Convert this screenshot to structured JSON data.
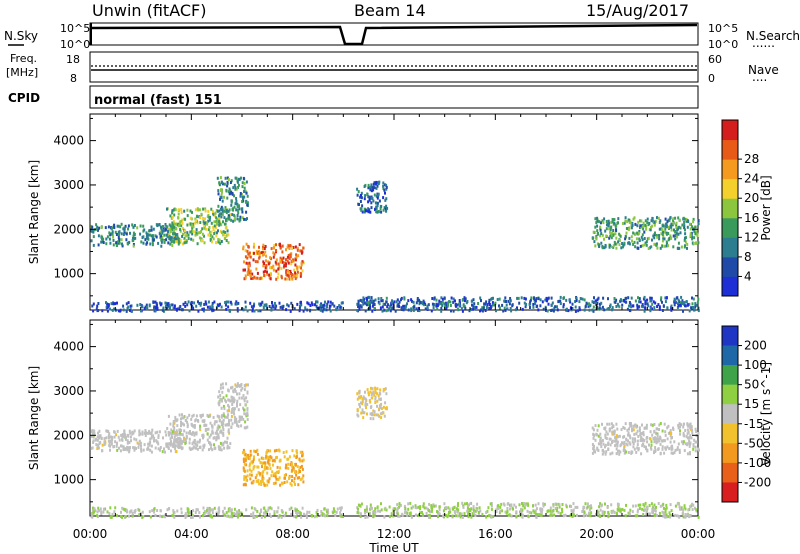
{
  "header": {
    "station": "Unwin (fitACF)",
    "beam": "Beam 14",
    "date": "15/Aug/2017"
  },
  "panels": {
    "nsky_label": "N.Sky",
    "nsearch_label": "N.Search",
    "freq_label": "Freq.",
    "freq_unit": "[MHz]",
    "nave_label": "Nave",
    "cpid_label": "CPID",
    "cpid_value": "normal (fast) 151",
    "noise_ticks": [
      "10^5",
      "10^0"
    ],
    "freq_ticks": [
      "18",
      "8"
    ],
    "nave_ticks": [
      "60",
      "0"
    ],
    "nsearch_legend": "......",
    "nave_legend": "...."
  },
  "colors": {
    "power_scale": [
      "#1f2fd6",
      "#1f4aa8",
      "#2b7d8f",
      "#3a9a5c",
      "#8cc63f",
      "#f3d02c",
      "#f39a1f",
      "#e85a18",
      "#d41d1d"
    ],
    "velocity_scale": [
      "#1f35c4",
      "#1f68a8",
      "#3fa34a",
      "#8fd043",
      "#c0c0c0",
      "#f2c12e",
      "#f29a1f",
      "#e8601a",
      "#d81e1e"
    ]
  },
  "chart_data": [
    {
      "type": "heatmap",
      "title": "",
      "quantity": "Power",
      "xlabel": "Time UT",
      "ylabel": "Slant Range [km]",
      "colorbar_label": "Power [dB]",
      "x_range": [
        "00:00",
        "24:00"
      ],
      "x_ticks": [
        "00:00",
        "04:00",
        "08:00",
        "12:00",
        "16:00",
        "20:00",
        "00:00"
      ],
      "y_range": [
        180,
        4600
      ],
      "y_ticks": [
        1000,
        2000,
        3000,
        4000
      ],
      "color_ticks": [
        4,
        8,
        12,
        16,
        20,
        24,
        28
      ],
      "color_range": [
        0,
        30
      ],
      "regions": [
        {
          "t_start": 0.0,
          "t_end": 3.5,
          "range_start": 1650,
          "range_end": 2150,
          "power": 9
        },
        {
          "t_start": 3.0,
          "t_end": 5.5,
          "range_start": 1700,
          "range_end": 2500,
          "power": 14
        },
        {
          "t_start": 5.0,
          "t_end": 6.2,
          "range_start": 2200,
          "range_end": 3200,
          "power": 10
        },
        {
          "t_start": 6.0,
          "t_end": 8.4,
          "range_start": 900,
          "range_end": 1700,
          "power": 24
        },
        {
          "t_start": 10.5,
          "t_end": 11.7,
          "range_start": 2400,
          "range_end": 3100,
          "power": 7
        },
        {
          "t_start": 19.8,
          "t_end": 24.0,
          "range_start": 1600,
          "range_end": 2300,
          "power": 11
        },
        {
          "t_start": 10.5,
          "t_end": 24.0,
          "range_start": 180,
          "range_end": 500,
          "power": 6
        },
        {
          "t_start": 0.0,
          "t_end": 10.0,
          "range_start": 180,
          "range_end": 400,
          "power": 5
        }
      ]
    },
    {
      "type": "heatmap",
      "title": "",
      "quantity": "Velocity",
      "xlabel": "Time UT",
      "ylabel": "Slant Range [km]",
      "colorbar_label": "Velocity [m s^-1]",
      "x_range": [
        "00:00",
        "24:00"
      ],
      "x_ticks": [
        "00:00",
        "04:00",
        "08:00",
        "12:00",
        "16:00",
        "20:00",
        "00:00"
      ],
      "y_range": [
        180,
        4600
      ],
      "y_ticks": [
        1000,
        2000,
        3000,
        4000
      ],
      "color_ticks": [
        200,
        100,
        50,
        15,
        -15,
        -50,
        -100,
        -200
      ],
      "color_range": [
        -250,
        250
      ],
      "regions": [
        {
          "t_start": 0.0,
          "t_end": 3.5,
          "range_start": 1650,
          "range_end": 2150,
          "velocity": 0
        },
        {
          "t_start": 3.0,
          "t_end": 5.5,
          "range_start": 1700,
          "range_end": 2500,
          "velocity": 0
        },
        {
          "t_start": 5.0,
          "t_end": 6.2,
          "range_start": 2200,
          "range_end": 3200,
          "velocity": 0
        },
        {
          "t_start": 6.0,
          "t_end": 8.4,
          "range_start": 900,
          "range_end": 1700,
          "velocity": -80
        },
        {
          "t_start": 10.5,
          "t_end": 11.7,
          "range_start": 2400,
          "range_end": 3100,
          "velocity": -30
        },
        {
          "t_start": 19.8,
          "t_end": 24.0,
          "range_start": 1600,
          "range_end": 2300,
          "velocity": 0
        },
        {
          "t_start": 10.5,
          "t_end": 24.0,
          "range_start": 180,
          "range_end": 500,
          "velocity": 30
        },
        {
          "t_start": 0.0,
          "t_end": 10.0,
          "range_start": 180,
          "range_end": 400,
          "velocity": 20
        }
      ]
    }
  ]
}
